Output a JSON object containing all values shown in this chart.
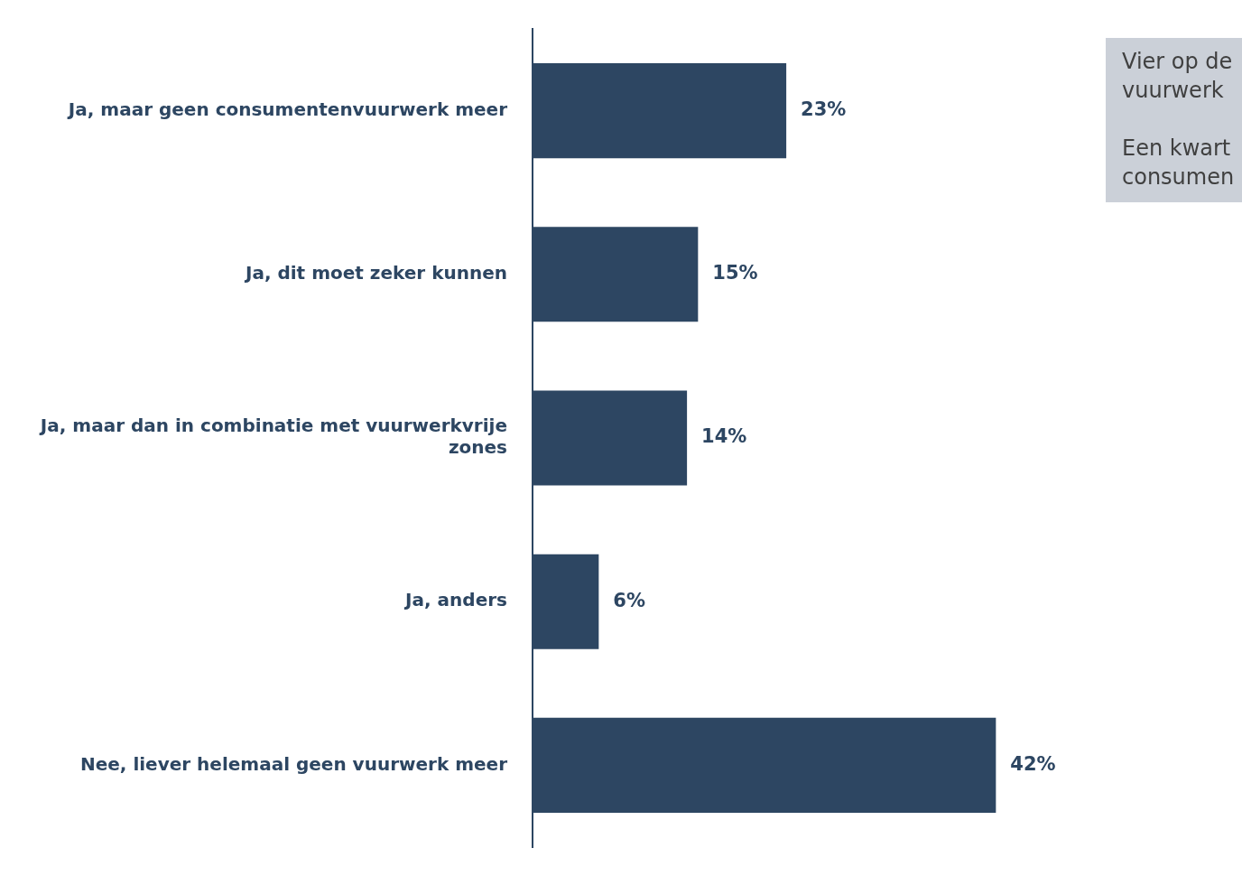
{
  "chart_data": {
    "type": "bar",
    "orientation": "horizontal",
    "categories": [
      "Ja, maar geen consumentenvuurwerk meer",
      "Ja, dit moet zeker kunnen",
      "Ja, maar dan in combinatie met vuurwerkvrije zones",
      "Ja, anders",
      "Nee, liever helemaal geen vuurwerk meer"
    ],
    "values": [
      23,
      15,
      14,
      6,
      42
    ],
    "value_labels": [
      "23%",
      "15%",
      "14%",
      "6%",
      "42%"
    ],
    "color": "#2d4662",
    "tick_labels": "y",
    "legend": false,
    "annotations": [
      "Vier op de\nvuurwerk",
      "Een kwart\nconsumen"
    ]
  }
}
